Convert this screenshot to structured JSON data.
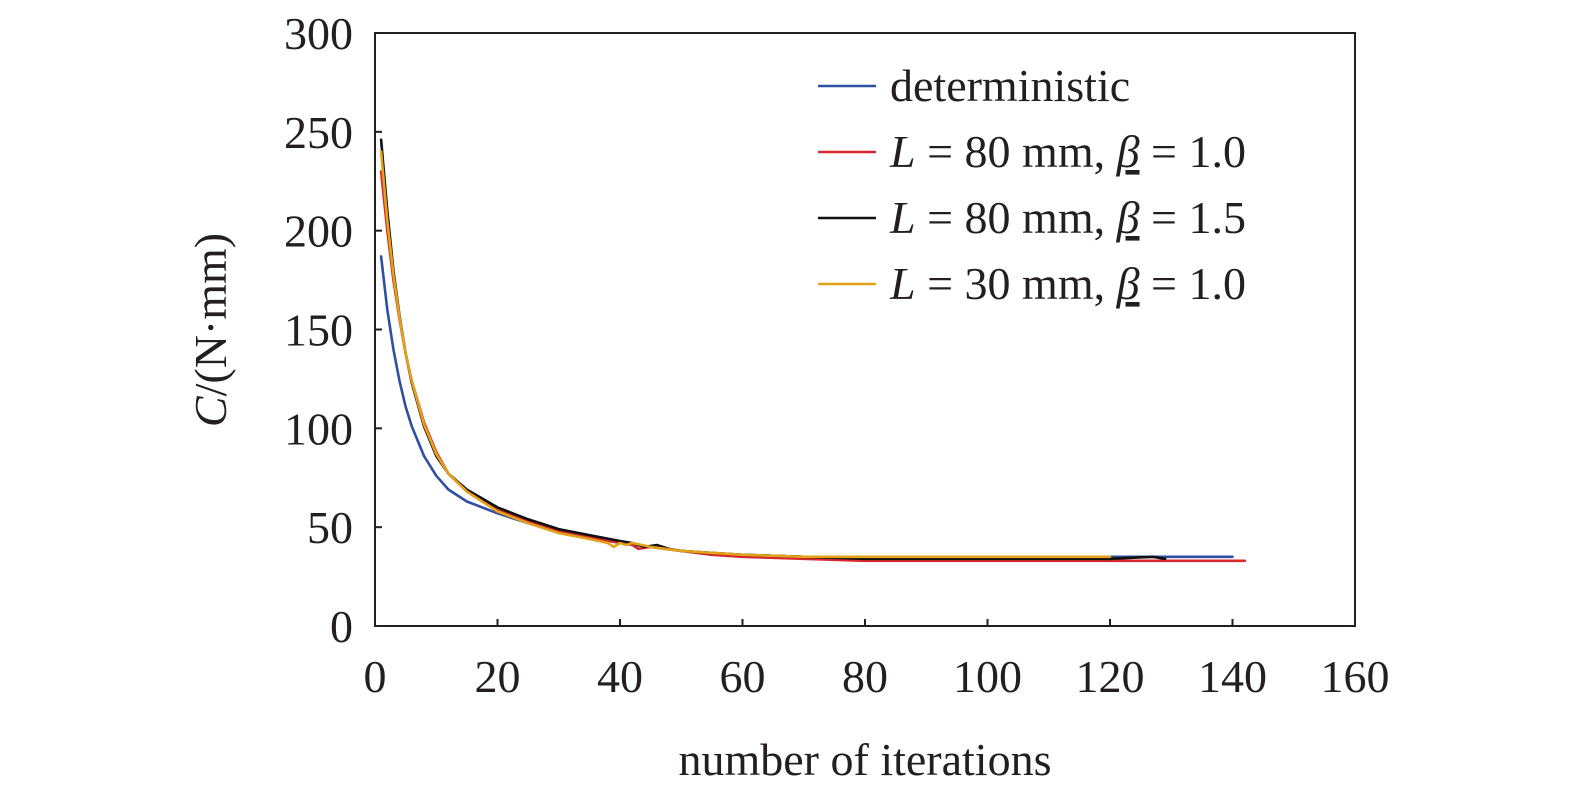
{
  "chart_data": {
    "type": "line",
    "title": "",
    "xlabel": "number of iterations",
    "ylabel": {
      "var": "C",
      "unit": "/(N·mm)"
    },
    "xlim": [
      0,
      160
    ],
    "ylim": [
      0,
      300
    ],
    "xticks": [
      "0",
      "20",
      "40",
      "60",
      "80",
      "100",
      "120",
      "140",
      "160"
    ],
    "yticks": [
      "0",
      "50",
      "100",
      "150",
      "200",
      "250",
      "300"
    ],
    "grid": false,
    "legend_position": "top-right",
    "series": [
      {
        "name": "deterministic",
        "legend": {
          "prefix": "",
          "var": "",
          "mid": "deterministic",
          "beta": "",
          "suffix": ""
        },
        "color": "#2e4fa3",
        "x": [
          1,
          2,
          3,
          4,
          5,
          6,
          8,
          10,
          12,
          15,
          20,
          25,
          30,
          35,
          40,
          45,
          50,
          55,
          60,
          70,
          80,
          100,
          120,
          140
        ],
        "y": [
          187,
          160,
          140,
          124,
          111,
          101,
          86,
          76,
          69,
          63,
          57,
          52,
          48,
          45,
          42,
          40,
          38,
          37,
          36,
          35,
          35,
          35,
          35,
          35
        ]
      },
      {
        "name": "L = 80 mm, β = 1.0",
        "legend": {
          "prefix": "",
          "var": "L",
          "mid": " = 80 mm, ",
          "beta": "β",
          "suffix": " = 1.0"
        },
        "color": "#d7282f",
        "x": [
          1,
          2,
          3,
          4,
          5,
          6,
          8,
          10,
          12,
          15,
          20,
          25,
          30,
          35,
          40,
          42,
          43,
          45,
          50,
          55,
          60,
          70,
          80,
          100,
          120,
          142
        ],
        "y": [
          230,
          200,
          175,
          155,
          138,
          124,
          103,
          88,
          77,
          68,
          59,
          53,
          48,
          45,
          42,
          41,
          39,
          40,
          38,
          36,
          35,
          34,
          33,
          33,
          33,
          33
        ]
      },
      {
        "name": "L = 80 mm, β = 1.5",
        "legend": {
          "prefix": "",
          "var": "L",
          "mid": " = 80 mm, ",
          "beta": "β",
          "suffix": " = 1.5"
        },
        "color": "#111111",
        "x": [
          1,
          2,
          3,
          4,
          5,
          6,
          8,
          10,
          12,
          15,
          20,
          25,
          30,
          35,
          40,
          42,
          44,
          46,
          48,
          50,
          55,
          60,
          70,
          80,
          100,
          120,
          127,
          129
        ],
        "y": [
          246,
          210,
          180,
          157,
          138,
          123,
          101,
          86,
          77,
          69,
          60,
          54,
          49,
          46,
          43,
          42,
          40,
          41,
          39,
          38,
          37,
          36,
          35,
          34,
          34,
          34,
          35,
          34
        ]
      },
      {
        "name": "L = 30 mm, β = 1.0",
        "legend": {
          "prefix": "",
          "var": "L",
          "mid": " = 30 mm, ",
          "beta": "β",
          "suffix": " = 1.0"
        },
        "color": "#e3a21a",
        "x": [
          1,
          2,
          3,
          4,
          5,
          6,
          8,
          10,
          12,
          15,
          20,
          25,
          30,
          35,
          38,
          39,
          40,
          41,
          42,
          45,
          50,
          60,
          70,
          80,
          100,
          120
        ],
        "y": [
          240,
          205,
          178,
          156,
          138,
          124,
          102,
          87,
          77,
          68,
          58,
          52,
          47,
          44,
          42,
          40,
          42,
          41,
          42,
          40,
          38,
          36,
          35,
          35,
          35,
          35
        ]
      }
    ]
  }
}
